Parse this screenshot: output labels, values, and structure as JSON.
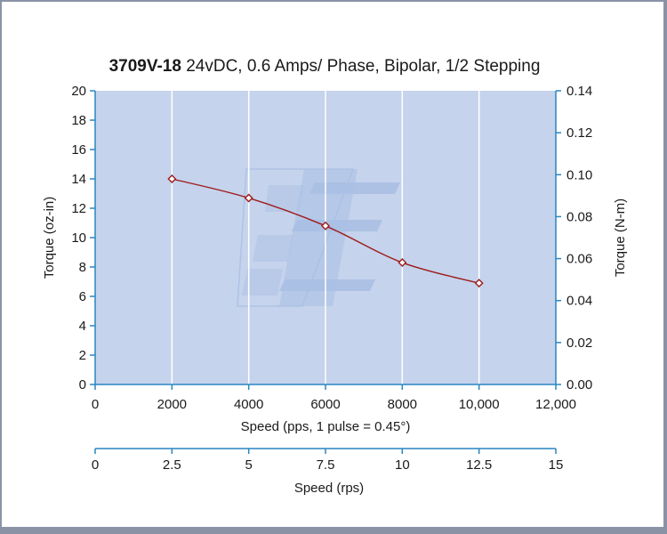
{
  "chart_data": {
    "type": "line",
    "title_bold": "3709V-18",
    "title_rest": " 24vDC, 0.6 Amps/ Phase, Bipolar, 1/2 Stepping",
    "xlabel": "Speed (pps, 1 pulse = 0.45°)",
    "ylabel": "Torque (oz-in)",
    "y2label": "Torque (N-m)",
    "x2label": "Speed (rps)",
    "xlim": [
      0,
      12000
    ],
    "ylim": [
      0,
      20
    ],
    "y2lim": [
      0,
      0.14
    ],
    "x2lim": [
      0,
      15
    ],
    "x_ticks": [
      {
        "value": 0,
        "label": "0"
      },
      {
        "value": 2000,
        "label": "2000"
      },
      {
        "value": 4000,
        "label": "4000"
      },
      {
        "value": 6000,
        "label": "6000"
      },
      {
        "value": 8000,
        "label": "8000"
      },
      {
        "value": 10000,
        "label": "10,000"
      },
      {
        "value": 12000,
        "label": "12,000"
      }
    ],
    "y_ticks": [
      {
        "value": 0,
        "label": "0"
      },
      {
        "value": 2,
        "label": "2"
      },
      {
        "value": 4,
        "label": "4"
      },
      {
        "value": 6,
        "label": "6"
      },
      {
        "value": 8,
        "label": "8"
      },
      {
        "value": 10,
        "label": "10"
      },
      {
        "value": 12,
        "label": "12"
      },
      {
        "value": 14,
        "label": "14"
      },
      {
        "value": 16,
        "label": "16"
      },
      {
        "value": 18,
        "label": "18"
      },
      {
        "value": 20,
        "label": "20"
      }
    ],
    "y2_ticks": [
      {
        "value": 0,
        "label": "0.00"
      },
      {
        "value": 0.02,
        "label": "0.02"
      },
      {
        "value": 0.04,
        "label": "0.04"
      },
      {
        "value": 0.06,
        "label": "0.06"
      },
      {
        "value": 0.08,
        "label": "0.08"
      },
      {
        "value": 0.1,
        "label": "0.10"
      },
      {
        "value": 0.12,
        "label": "0.12"
      },
      {
        "value": 0.14,
        "label": "0.14"
      }
    ],
    "x2_ticks": [
      {
        "value": 0,
        "label": "0"
      },
      {
        "value": 2.5,
        "label": "2.5"
      },
      {
        "value": 5,
        "label": "5"
      },
      {
        "value": 7.5,
        "label": "7.5"
      },
      {
        "value": 10,
        "label": "10"
      },
      {
        "value": 12.5,
        "label": "12.5"
      },
      {
        "value": 15,
        "label": "15"
      }
    ],
    "series": [
      {
        "name": "Torque",
        "x": [
          2000,
          4000,
          6000,
          8000,
          10000
        ],
        "y": [
          14.0,
          12.7,
          10.8,
          8.3,
          6.9
        ]
      }
    ],
    "grid": true,
    "colors": {
      "plot_bg": "#c5d3ec",
      "grid": "#ffffff",
      "axis": "#2a86c0",
      "line": "#9e1b1b",
      "marker_fill": "#ffffff",
      "watermark": "#a9bfe3"
    }
  }
}
